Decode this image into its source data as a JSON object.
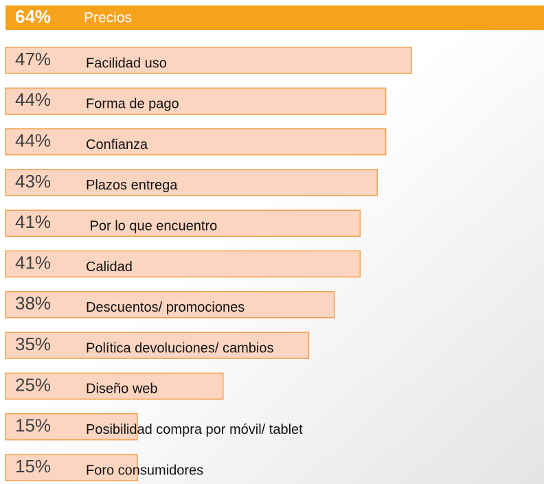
{
  "chart_data": {
    "type": "bar",
    "orientation": "horizontal",
    "categories": [
      "Precios",
      "Facilidad uso",
      "Forma de pago",
      "Confianza",
      "Plazos entrega",
      " Por lo que encuentro",
      "Calidad",
      "Descuentos/ promociones",
      "Política devoluciones/ cambios",
      "Diseño web",
      "Posibilidad compra por móvil/ tablet",
      "Foro consumidores"
    ],
    "values": [
      64,
      47,
      44,
      44,
      43,
      41,
      41,
      38,
      35,
      25,
      15,
      15
    ],
    "value_labels": [
      "64%",
      "47%",
      "44%",
      "44%",
      "43%",
      "41%",
      "41%",
      "38%",
      "35%",
      "25%",
      "15%",
      "15%"
    ],
    "colors": [
      "#f7a21b",
      "#fcd5c0",
      "#fcd5c0",
      "#fcd5c0",
      "#fcd5c0",
      "#fcd5c0",
      "#fcd5c0",
      "#fcd5c0",
      "#fcd5c0",
      "#fcd5c0",
      "#fcd5c0",
      "#fcd5c0"
    ]
  }
}
